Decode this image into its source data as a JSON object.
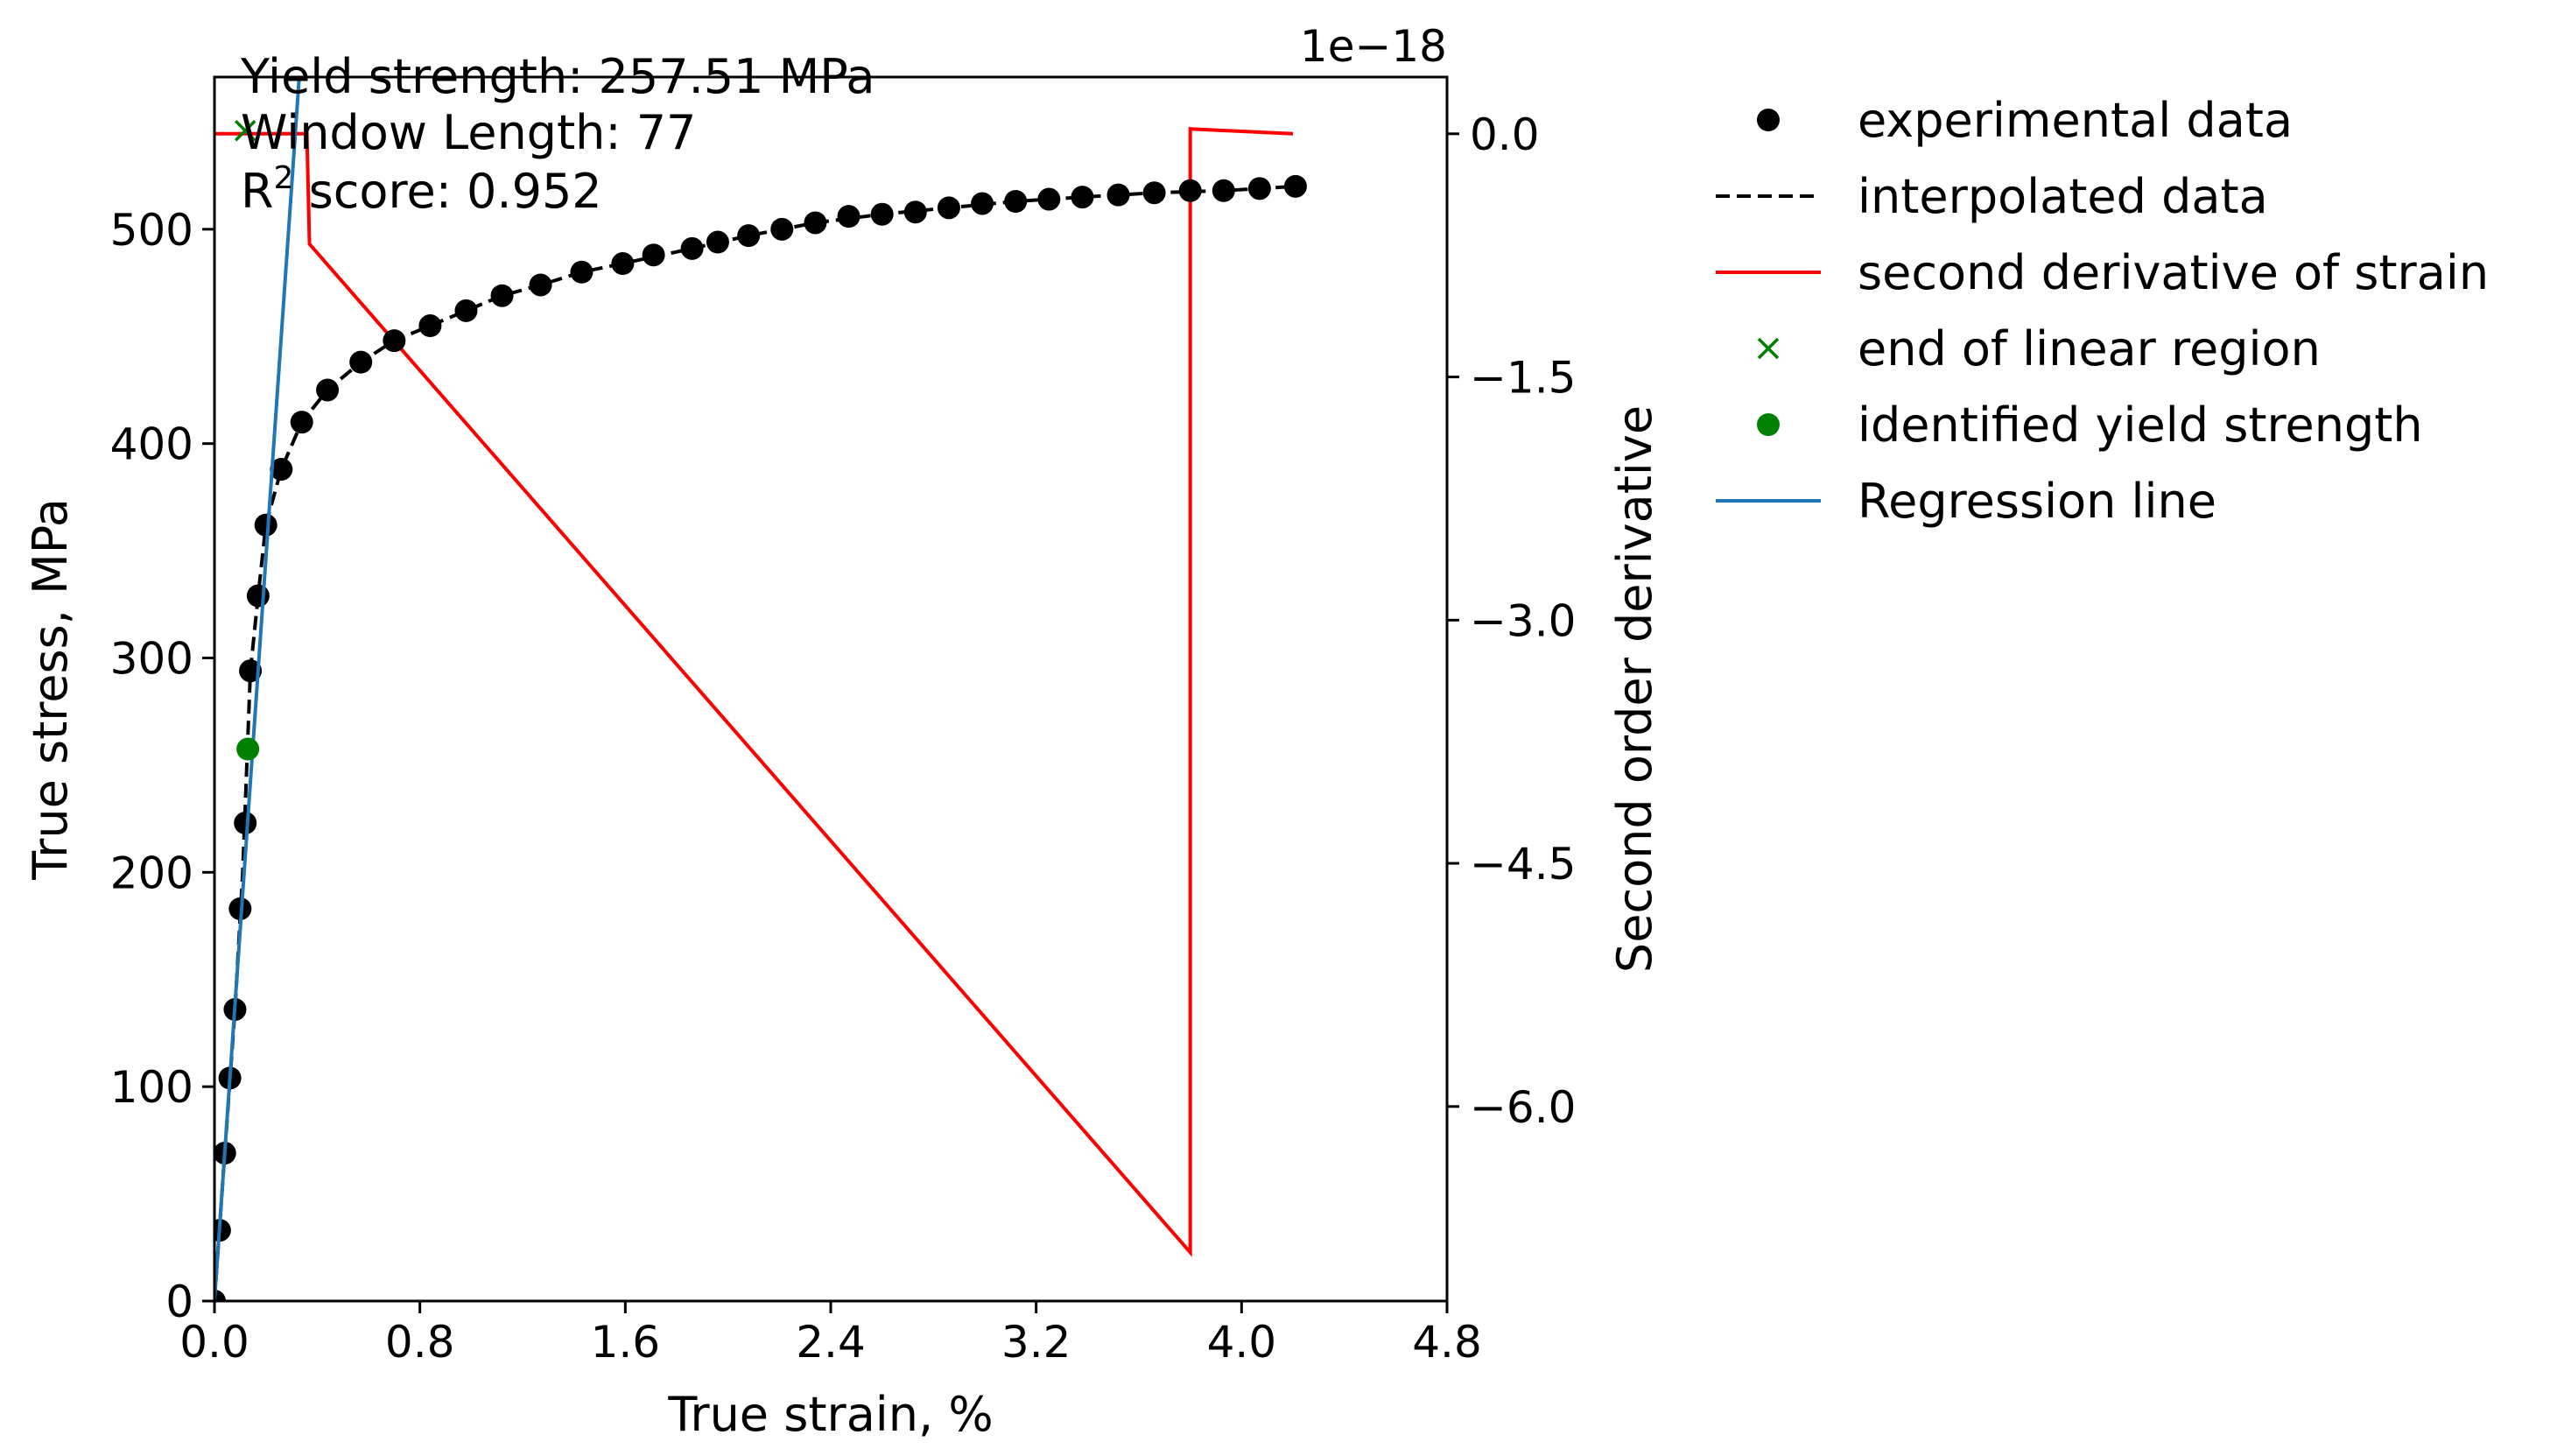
{
  "chart_data": {
    "type": "line",
    "xlabel": "True strain, %",
    "ylabel": "True stress, MPa",
    "y2label": "Second order derivative",
    "y2_offset_text": "1e−18",
    "xlim": [
      0,
      4.8
    ],
    "ylim": [
      0,
      571
    ],
    "y2lim": [
      -7.2,
      0.35
    ],
    "x_ticks": [
      0.0,
      0.8,
      1.6,
      2.4,
      3.2,
      4.0,
      4.8
    ],
    "x_tick_labels": [
      "0.0",
      "0.8",
      "1.6",
      "2.4",
      "3.2",
      "4.0",
      "4.8"
    ],
    "y_ticks": [
      0,
      100,
      200,
      300,
      400,
      500
    ],
    "y_tick_labels": [
      "0",
      "100",
      "200",
      "300",
      "400",
      "500"
    ],
    "y2_ticks": [
      0.0,
      -1.5,
      -3.0,
      -4.5,
      -6.0
    ],
    "y2_tick_labels": [
      "0.0",
      "−1.5",
      "−3.0",
      "−4.5",
      "−6.0"
    ],
    "grid": false,
    "legend_position": "outside-right",
    "annotations": {
      "yield": "Yield strength: 257.51 MPa",
      "window": "Window Length: 77",
      "r2_prefix": "R",
      "r2_sup": "2",
      "r2_suffix": " score: 0.952"
    },
    "legend": [
      {
        "label": "experimental data",
        "marker": "dot",
        "color": "#000000"
      },
      {
        "label": "interpolated data",
        "marker": "dashed",
        "color": "#000000"
      },
      {
        "label": "second derivative of strain",
        "marker": "line",
        "color": "#ff0000"
      },
      {
        "label": "end of linear region",
        "marker": "x",
        "color": "#008000"
      },
      {
        "label": "identified yield strength",
        "marker": "dot",
        "color": "#008000"
      },
      {
        "label": "Regression line",
        "marker": "line",
        "color": "#1f77b4"
      }
    ],
    "series": [
      {
        "name": "experimental data",
        "axis": "left",
        "color": "#000000",
        "x": [
          0.0,
          0.02,
          0.04,
          0.06,
          0.08,
          0.1,
          0.12,
          0.14,
          0.17,
          0.2,
          0.26,
          0.34,
          0.44,
          0.57,
          0.7,
          0.84,
          0.98,
          1.12,
          1.27,
          1.43,
          1.59,
          1.71,
          1.86,
          1.96,
          2.08,
          2.21,
          2.34,
          2.47,
          2.6,
          2.73,
          2.86,
          2.99,
          3.12,
          3.25,
          3.38,
          3.52,
          3.66,
          3.8,
          3.93,
          4.07,
          4.21
        ],
        "y": [
          0,
          33,
          69,
          104,
          136,
          183,
          223,
          294,
          329,
          362,
          388,
          410,
          425,
          438,
          448,
          455,
          462,
          469,
          474,
          480,
          484,
          488,
          491,
          494,
          497,
          500,
          503,
          506,
          507,
          508,
          510,
          512,
          513,
          514,
          515,
          516,
          517,
          518,
          518,
          519,
          520
        ]
      },
      {
        "name": "interpolated data",
        "axis": "left",
        "color": "#000000",
        "x": [
          0.0,
          0.04,
          0.08,
          0.11,
          0.14,
          0.17,
          0.2,
          0.26,
          0.34,
          0.44,
          0.57,
          0.7,
          0.84,
          0.98,
          1.12,
          1.27,
          1.43,
          1.59,
          1.86,
          2.08,
          2.34,
          2.6,
          2.86,
          3.12,
          3.38,
          3.66,
          3.93,
          4.21
        ],
        "y": [
          0,
          69,
          136,
          200,
          294,
          329,
          362,
          388,
          410,
          425,
          438,
          448,
          455,
          462,
          469,
          474,
          480,
          484,
          491,
          497,
          503,
          507,
          510,
          513,
          515,
          517,
          518,
          520
        ]
      },
      {
        "name": "second derivative of strain",
        "axis": "right",
        "color": "#ff0000",
        "x": [
          0.0,
          0.36,
          0.37,
          3.8,
          3.8,
          4.2
        ],
        "y": [
          0.0,
          0.0,
          -0.68,
          -6.9,
          0.03,
          0.0
        ]
      },
      {
        "name": "Regression line",
        "axis": "left",
        "color": "#1f77b4",
        "x": [
          0.0,
          0.33
        ],
        "y": [
          0,
          571
        ]
      },
      {
        "name": "end of linear region",
        "axis": "left",
        "color": "#008000",
        "x": [
          0.12
        ],
        "y": [
          546
        ]
      },
      {
        "name": "identified yield strength",
        "axis": "left",
        "color": "#008000",
        "x": [
          0.13
        ],
        "y": [
          257.51
        ]
      }
    ]
  }
}
